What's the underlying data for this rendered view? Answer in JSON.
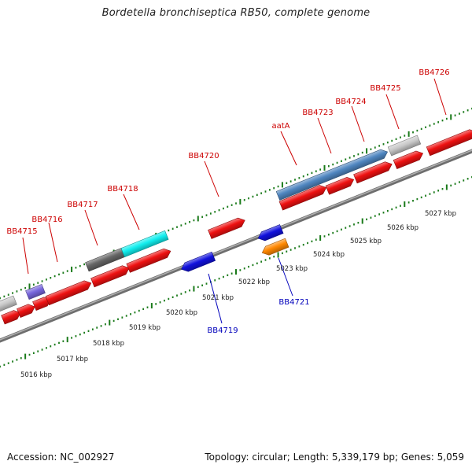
{
  "title": "Bordetella bronchiseptica RB50, complete genome",
  "footer": {
    "accession": "Accession: NC_002927",
    "topology": "Topology: circular; Length: 5,339,179 bp; Genes: 5,059"
  },
  "scale_labels": [
    "5016 kbp",
    "5017 kbp",
    "5018 kbp",
    "5019 kbp",
    "5020 kbp",
    "5021 kbp",
    "5022 kbp",
    "5023 kbp",
    "5024 kbp",
    "5025 kbp",
    "5026 kbp",
    "5027 kbp"
  ],
  "gene_labels_forward": [
    "BB4715",
    "BB4716",
    "BB4717",
    "BB4718",
    "BB4720",
    "aatA",
    "BB4723",
    "BB4724",
    "BB4725",
    "BB4726"
  ],
  "gene_labels_reverse": [
    "BB4719",
    "BB4721"
  ],
  "colors": {
    "forward_label": "#cc0000",
    "reverse_label": "#0000bb",
    "tick": "#1a7a1a",
    "backbone": "#8a8a8a",
    "gene_red": "#ee1111",
    "gene_blue": "#1111dd",
    "gene_orange": "#ff8800",
    "gene_cyan": "#11eeee",
    "gene_steel": "#4f86c0",
    "gene_grey": "#c8c8c8",
    "gene_dark": "#666666",
    "gene_purple": "#7766dd"
  }
}
